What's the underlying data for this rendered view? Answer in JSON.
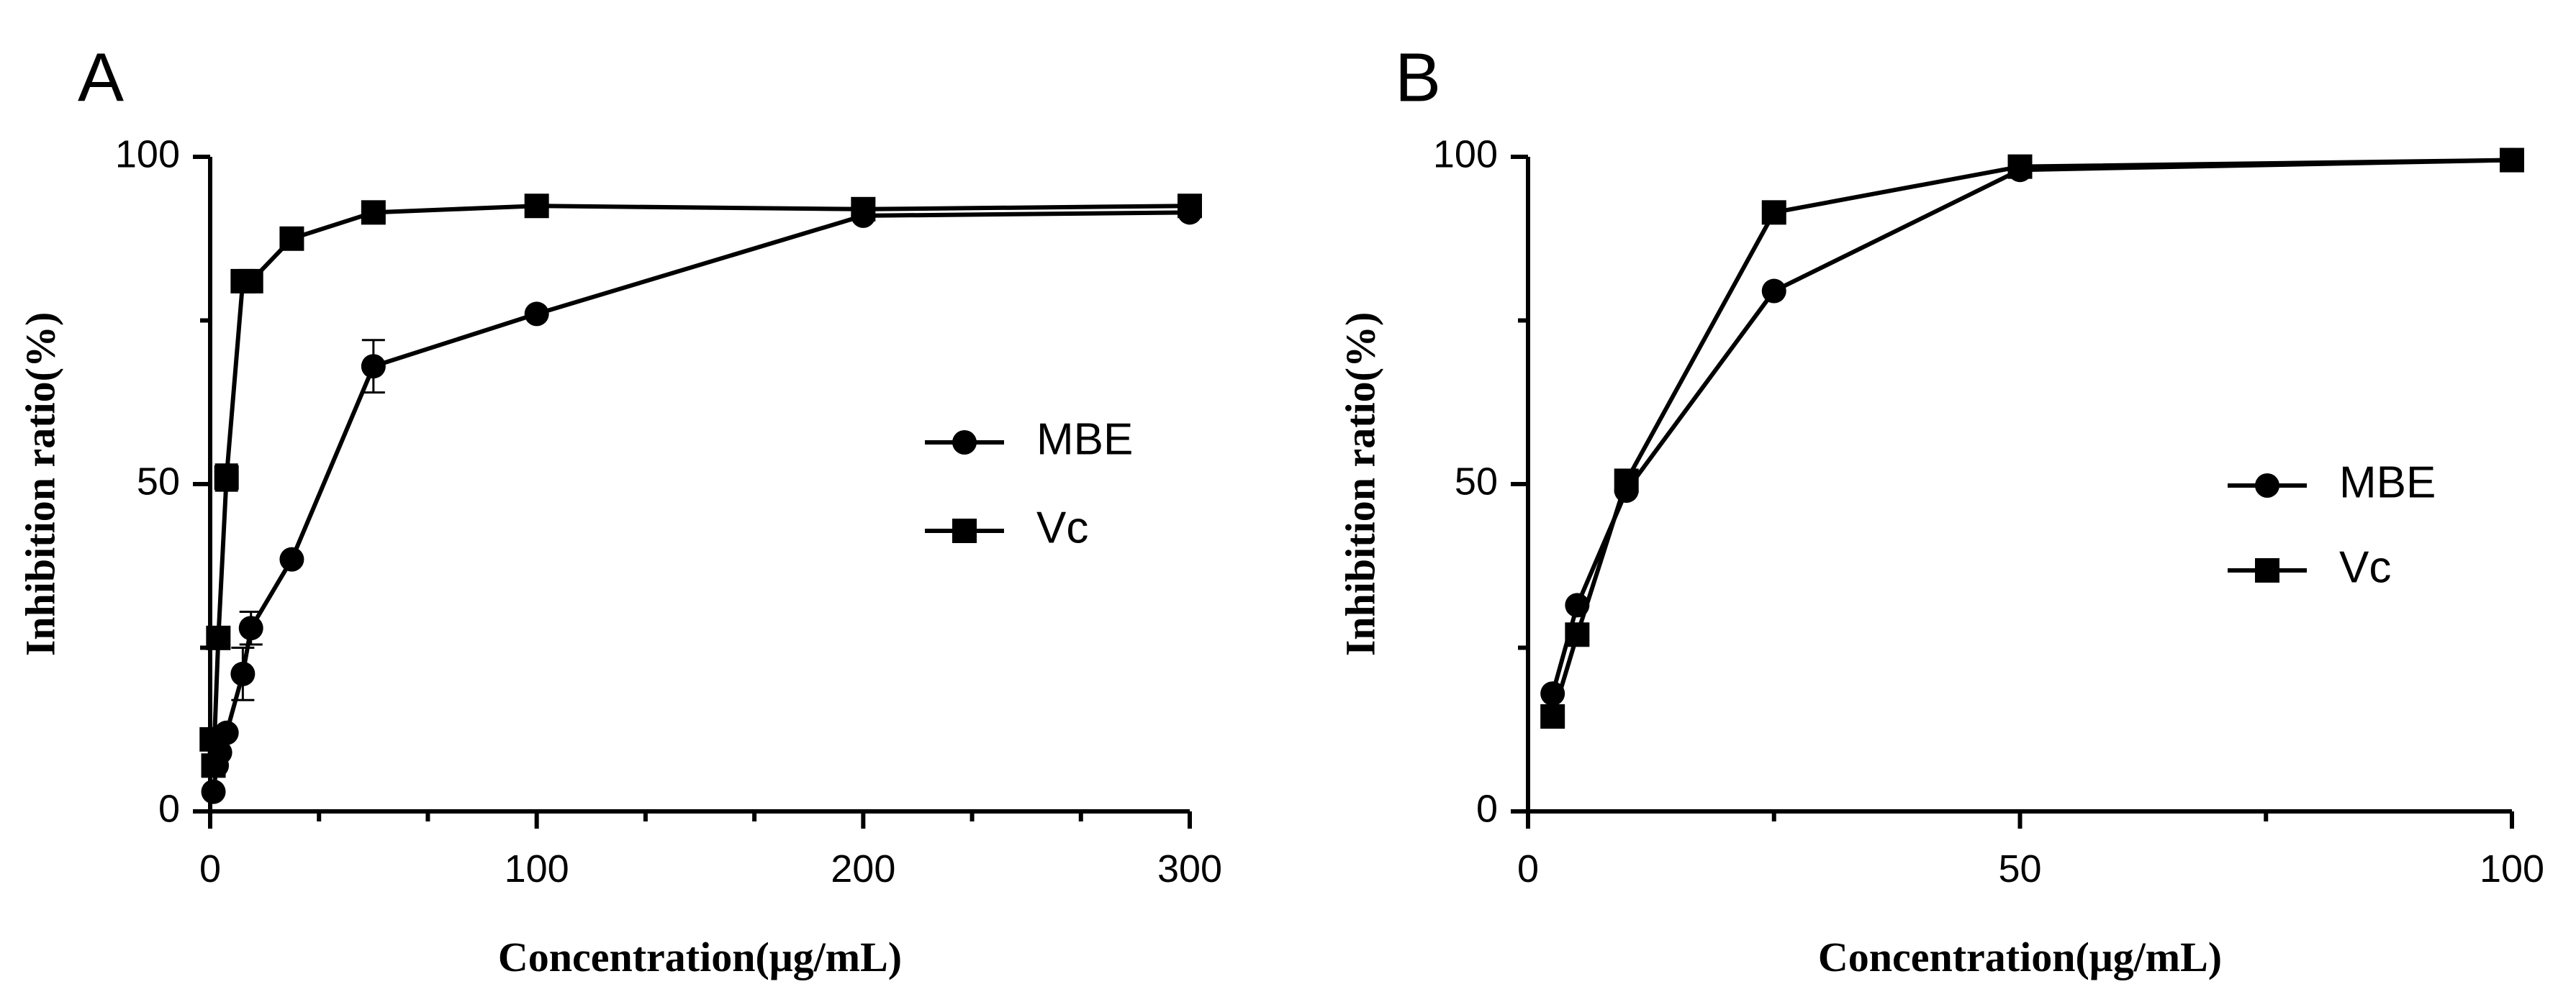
{
  "chart_data": [
    {
      "type": "line",
      "panel": "A",
      "xlabel": "Concentration(μg/mL)",
      "ylabel": "Inhibition ratio(%)",
      "xlim": [
        0,
        300
      ],
      "ylim": [
        0,
        100
      ],
      "xticks": [
        0,
        100,
        200,
        300
      ],
      "yticks": [
        0,
        50,
        100
      ],
      "legend_position": "right",
      "series": [
        {
          "name": "MBE",
          "marker": "circle",
          "x": [
            1,
            2,
            3,
            5,
            10,
            12.5,
            25,
            50,
            100,
            200,
            300
          ],
          "y": [
            3,
            7,
            9,
            12,
            21,
            28,
            38.5,
            68,
            76,
            91,
            91.5
          ],
          "err": [
            0,
            0,
            0,
            0,
            4,
            2.5,
            0,
            4,
            0,
            0,
            0
          ]
        },
        {
          "name": "Vc",
          "marker": "square",
          "x": [
            0.5,
            1,
            2.5,
            5,
            10,
            12.5,
            25,
            50,
            100,
            200,
            300
          ],
          "y": [
            11,
            7,
            26.5,
            51,
            81,
            81,
            87.5,
            91.5,
            92.5,
            92,
            92.5
          ],
          "err": [
            0,
            0,
            0,
            2,
            0,
            0,
            0,
            0,
            0,
            0,
            0
          ]
        }
      ]
    },
    {
      "type": "line",
      "panel": "B",
      "xlabel": "Concentration(μg/mL)",
      "ylabel": "Inhibition ratio(%)",
      "xlim": [
        0,
        100
      ],
      "ylim": [
        0,
        100
      ],
      "xticks": [
        0,
        50,
        100
      ],
      "yticks": [
        0,
        50,
        100
      ],
      "legend_position": "right",
      "series": [
        {
          "name": "MBE",
          "marker": "circle",
          "x": [
            2.5,
            5,
            10,
            25,
            50,
            100
          ],
          "y": [
            18,
            31.5,
            49,
            79.5,
            98,
            99.5
          ],
          "err": [
            0,
            0,
            0,
            0,
            0,
            0
          ]
        },
        {
          "name": "Vc",
          "marker": "square",
          "x": [
            2.5,
            5,
            10,
            25,
            50,
            100
          ],
          "y": [
            14.5,
            27,
            50.5,
            91.5,
            98.5,
            99.5
          ],
          "err": [
            0,
            0,
            0,
            0,
            0,
            0
          ]
        }
      ]
    }
  ]
}
